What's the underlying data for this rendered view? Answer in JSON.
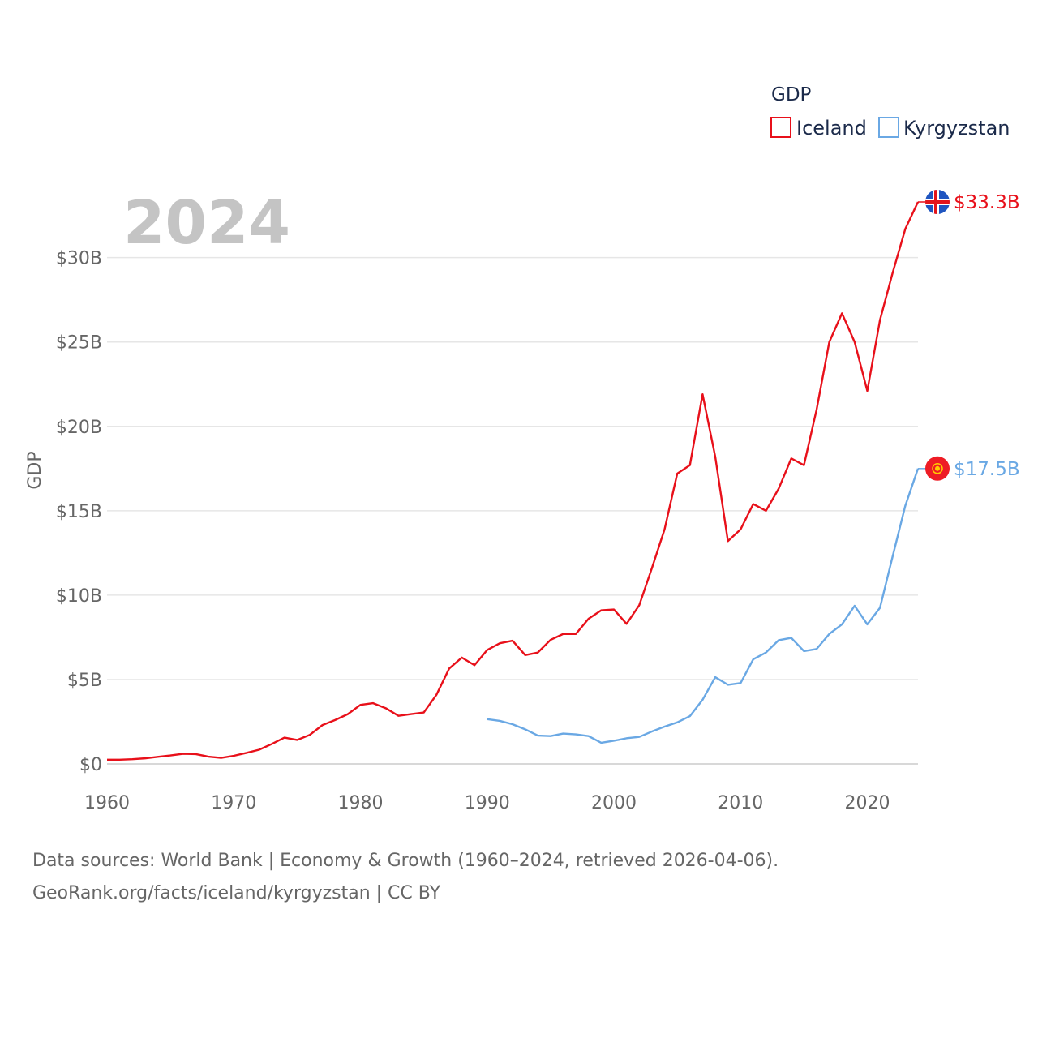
{
  "chart_data": {
    "type": "line",
    "year_label": "2024",
    "ylabel": "GDP",
    "xlim": [
      1960,
      2024
    ],
    "ylim": [
      0,
      33.3
    ],
    "y_ticks": [
      {
        "value": 0,
        "label": "$0"
      },
      {
        "value": 5,
        "label": "$5B"
      },
      {
        "value": 10,
        "label": "$10B"
      },
      {
        "value": 15,
        "label": "$15B"
      },
      {
        "value": 20,
        "label": "$20B"
      },
      {
        "value": 25,
        "label": "$25B"
      },
      {
        "value": 30,
        "label": "$30B"
      }
    ],
    "x_ticks": [
      1960,
      1970,
      1980,
      1990,
      2000,
      2010,
      2020
    ],
    "grid": true,
    "legend": {
      "title": "GDP",
      "position": "top-right",
      "entries": [
        {
          "name": "Iceland",
          "color": "#e8101a"
        },
        {
          "name": "Kyrgyzstan",
          "color": "#6aa8e4"
        }
      ]
    },
    "series": [
      {
        "name": "Iceland",
        "color": "#e8101a",
        "end_label": "$33.3B",
        "flag": "iceland-flag",
        "x": [
          1960,
          1961,
          1962,
          1963,
          1964,
          1965,
          1966,
          1967,
          1968,
          1969,
          1970,
          1971,
          1972,
          1973,
          1974,
          1975,
          1976,
          1977,
          1978,
          1979,
          1980,
          1981,
          1982,
          1983,
          1984,
          1985,
          1986,
          1987,
          1988,
          1989,
          1990,
          1991,
          1992,
          1993,
          1994,
          1995,
          1996,
          1997,
          1998,
          1999,
          2000,
          2001,
          2002,
          2003,
          2004,
          2005,
          2006,
          2007,
          2008,
          2009,
          2010,
          2011,
          2012,
          2013,
          2014,
          2015,
          2016,
          2017,
          2018,
          2019,
          2020,
          2021,
          2022,
          2023,
          2024
        ],
        "values": [
          0.25,
          0.25,
          0.28,
          0.33,
          0.42,
          0.5,
          0.6,
          0.58,
          0.43,
          0.36,
          0.48,
          0.65,
          0.84,
          1.18,
          1.56,
          1.42,
          1.72,
          2.3,
          2.6,
          2.95,
          3.5,
          3.6,
          3.3,
          2.85,
          2.95,
          3.05,
          4.1,
          5.65,
          6.3,
          5.85,
          6.75,
          7.15,
          7.3,
          6.45,
          6.6,
          7.35,
          7.7,
          7.7,
          8.6,
          9.1,
          9.15,
          8.3,
          9.4,
          11.6,
          13.9,
          17.2,
          17.7,
          21.9,
          18.2,
          13.2,
          13.9,
          15.4,
          15.0,
          16.3,
          18.1,
          17.7,
          21.0,
          25.0,
          26.7,
          25.0,
          22.1,
          26.3,
          29.1,
          31.7,
          33.3
        ]
      },
      {
        "name": "Kyrgyzstan",
        "color": "#6aa8e4",
        "end_label": "$17.5B",
        "flag": "kyrgyzstan-flag",
        "x": [
          1990,
          1991,
          1992,
          1993,
          1994,
          1995,
          1996,
          1997,
          1998,
          1999,
          2000,
          2001,
          2002,
          2003,
          2004,
          2005,
          2006,
          2007,
          2008,
          2009,
          2010,
          2011,
          2012,
          2013,
          2014,
          2015,
          2016,
          2017,
          2018,
          2019,
          2020,
          2021,
          2022,
          2023,
          2024
        ],
        "values": [
          2.65,
          2.55,
          2.35,
          2.05,
          1.68,
          1.65,
          1.8,
          1.75,
          1.65,
          1.25,
          1.37,
          1.52,
          1.6,
          1.92,
          2.21,
          2.46,
          2.83,
          3.8,
          5.14,
          4.69,
          4.79,
          6.2,
          6.6,
          7.33,
          7.47,
          6.68,
          6.81,
          7.7,
          8.27,
          9.37,
          8.27,
          9.25,
          12.3,
          15.3,
          17.5
        ]
      }
    ]
  },
  "source": {
    "line1": "Data sources: World Bank | Economy & Growth (1960–2024, retrieved 2026-04-06).",
    "line2": "GeoRank.org/facts/iceland/kyrgyzstan | CC BY"
  }
}
